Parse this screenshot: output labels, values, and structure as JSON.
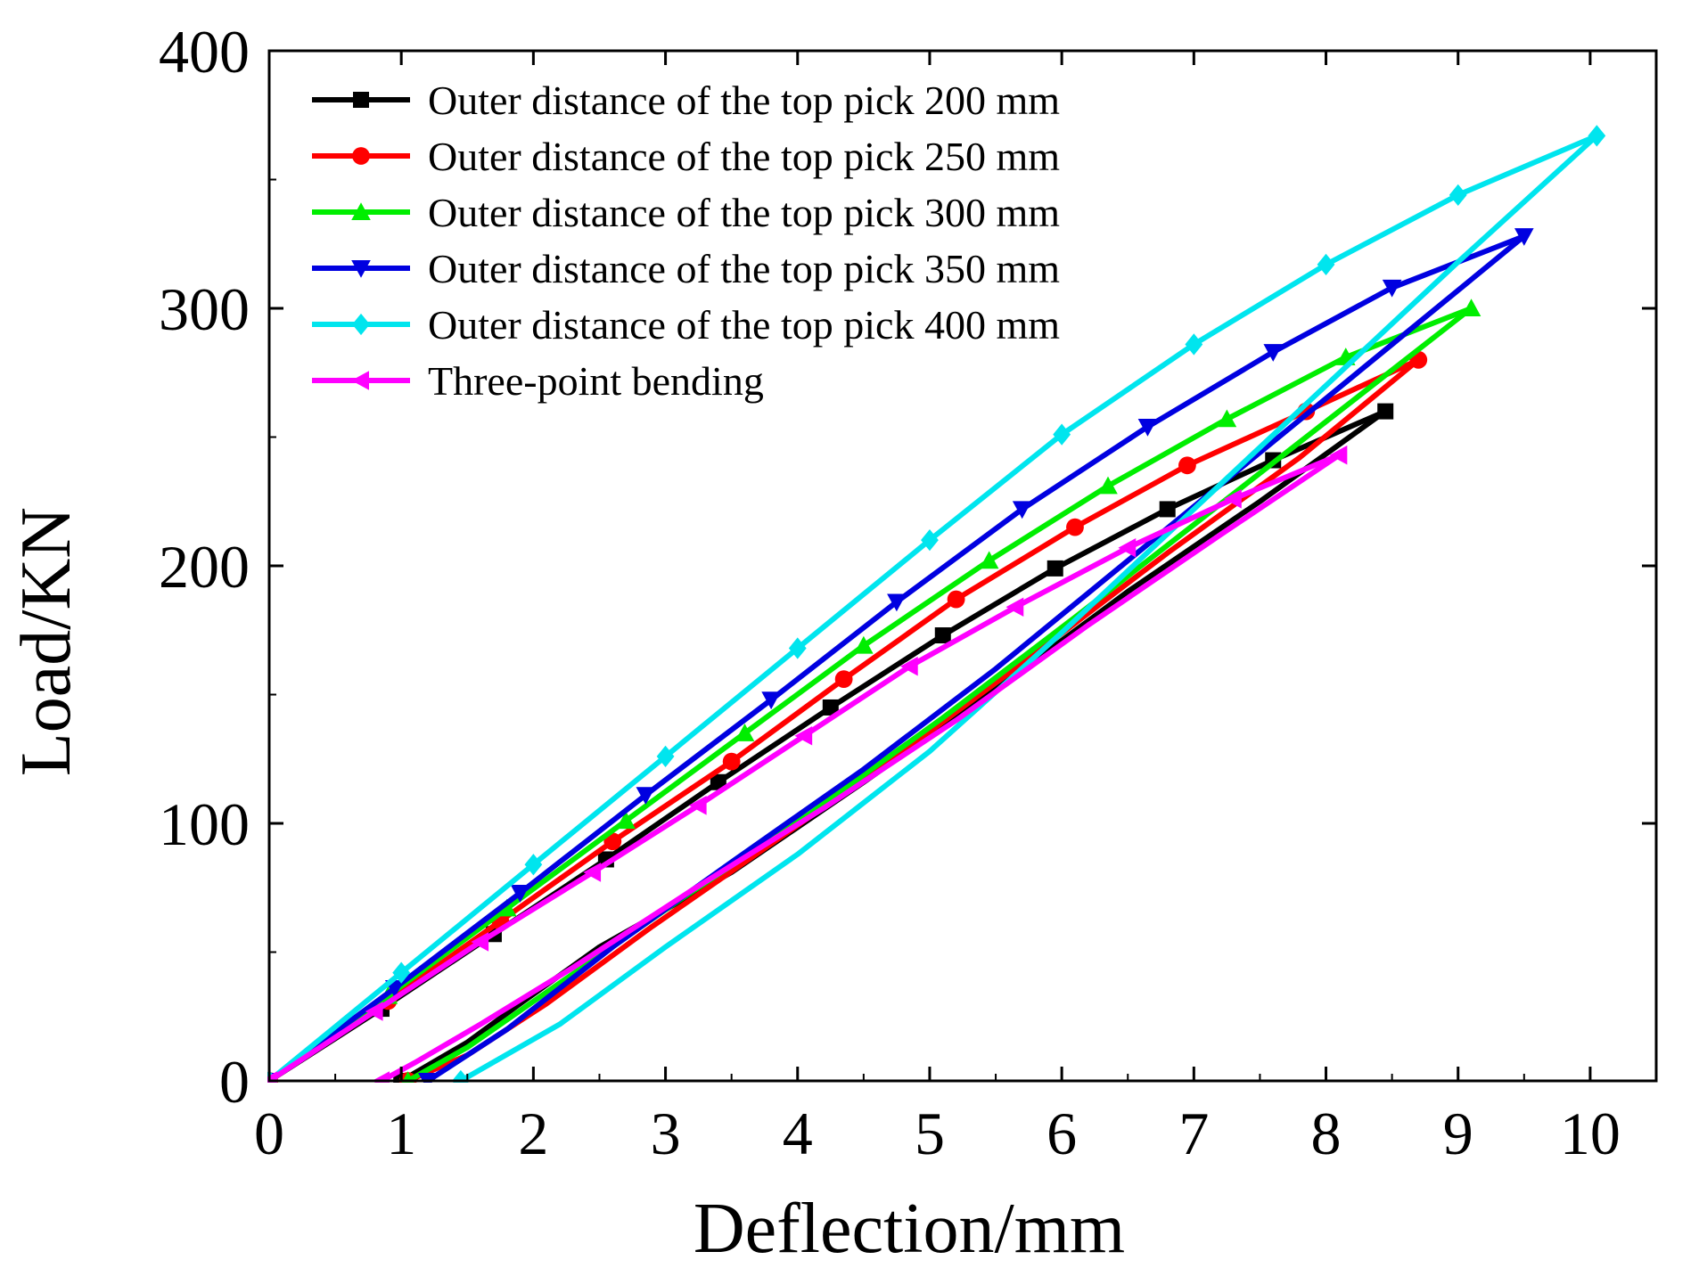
{
  "chart_data": {
    "type": "line",
    "title": "",
    "xlabel": "Deflection/mm",
    "ylabel": "Load/KN",
    "xlim": [
      0,
      10.5
    ],
    "ylim": [
      0,
      400
    ],
    "xticks": [
      0,
      1,
      2,
      3,
      4,
      5,
      6,
      7,
      8,
      9,
      10
    ],
    "yticks": [
      0,
      100,
      200,
      300,
      400
    ],
    "grid": false,
    "legend_position": "top-left",
    "series": [
      {
        "name": "Outer distance of the top pick 200 mm",
        "color": "#000000",
        "marker": "square",
        "loading": [
          [
            0,
            0
          ],
          [
            0.85,
            28
          ],
          [
            1.7,
            57
          ],
          [
            2.55,
            86
          ],
          [
            3.4,
            116
          ],
          [
            4.25,
            145
          ],
          [
            5.1,
            173
          ],
          [
            5.95,
            199
          ],
          [
            6.8,
            222
          ],
          [
            7.6,
            241
          ],
          [
            8.45,
            260
          ]
        ],
        "unloading": [
          [
            8.45,
            260
          ],
          [
            7.5,
            225
          ],
          [
            6.5,
            190
          ],
          [
            5.5,
            152
          ],
          [
            4.5,
            116
          ],
          [
            3.5,
            81
          ],
          [
            2.5,
            52
          ],
          [
            1.9,
            30
          ],
          [
            1.5,
            15
          ],
          [
            1.0,
            0
          ]
        ]
      },
      {
        "name": "Outer distance of the top pick 250 mm",
        "color": "#ff0000",
        "marker": "circle",
        "loading": [
          [
            0,
            0
          ],
          [
            0.9,
            31
          ],
          [
            1.75,
            62
          ],
          [
            2.6,
            93
          ],
          [
            3.5,
            124
          ],
          [
            4.35,
            156
          ],
          [
            5.2,
            187
          ],
          [
            6.1,
            215
          ],
          [
            6.95,
            239
          ],
          [
            7.85,
            260
          ],
          [
            8.7,
            280
          ]
        ],
        "unloading": [
          [
            8.7,
            280
          ],
          [
            7.8,
            242
          ],
          [
            6.8,
            205
          ],
          [
            5.8,
            166
          ],
          [
            4.8,
            128
          ],
          [
            3.8,
            92
          ],
          [
            2.9,
            60
          ],
          [
            2.1,
            30
          ],
          [
            1.5,
            10
          ],
          [
            1.05,
            0
          ]
        ]
      },
      {
        "name": "Outer distance of the top pick 300 mm",
        "color": "#00ee00",
        "marker": "triangle-up",
        "loading": [
          [
            0,
            0
          ],
          [
            0.9,
            33
          ],
          [
            1.8,
            67
          ],
          [
            2.7,
            101
          ],
          [
            3.6,
            135
          ],
          [
            4.5,
            169
          ],
          [
            5.45,
            202
          ],
          [
            6.35,
            231
          ],
          [
            7.25,
            257
          ],
          [
            8.15,
            281
          ],
          [
            9.1,
            300
          ]
        ],
        "unloading": [
          [
            9.1,
            300
          ],
          [
            8.1,
            260
          ],
          [
            7.1,
            220
          ],
          [
            6.1,
            180
          ],
          [
            5.1,
            141
          ],
          [
            4.1,
            104
          ],
          [
            3.1,
            70
          ],
          [
            2.2,
            38
          ],
          [
            1.5,
            13
          ],
          [
            1.05,
            0
          ]
        ]
      },
      {
        "name": "Outer distance of the top pick 350 mm",
        "color": "#0000e0",
        "marker": "triangle-down",
        "loading": [
          [
            0,
            0
          ],
          [
            0.95,
            36
          ],
          [
            1.9,
            73
          ],
          [
            2.85,
            111
          ],
          [
            3.8,
            148
          ],
          [
            4.75,
            186
          ],
          [
            5.7,
            222
          ],
          [
            6.65,
            254
          ],
          [
            7.6,
            283
          ],
          [
            8.5,
            308
          ],
          [
            9.5,
            328
          ]
        ],
        "unloading": [
          [
            9.5,
            328
          ],
          [
            8.5,
            286
          ],
          [
            7.5,
            244
          ],
          [
            6.5,
            202
          ],
          [
            5.5,
            160
          ],
          [
            4.5,
            121
          ],
          [
            3.5,
            85
          ],
          [
            2.6,
            52
          ],
          [
            1.8,
            20
          ],
          [
            1.2,
            0
          ]
        ]
      },
      {
        "name": "Outer distance of the top pick 400 mm",
        "color": "#00e5ee",
        "marker": "diamond",
        "loading": [
          [
            0,
            0
          ],
          [
            1.0,
            42
          ],
          [
            2.0,
            84
          ],
          [
            3.0,
            126
          ],
          [
            4.0,
            168
          ],
          [
            5.0,
            210
          ],
          [
            6.0,
            251
          ],
          [
            7.0,
            286
          ],
          [
            8.0,
            317
          ],
          [
            9.0,
            344
          ],
          [
            10.05,
            367
          ]
        ],
        "unloading": [
          [
            10.05,
            367
          ],
          [
            9.0,
            318
          ],
          [
            8.0,
            270
          ],
          [
            7.0,
            222
          ],
          [
            6.0,
            174
          ],
          [
            5.0,
            128
          ],
          [
            4.0,
            88
          ],
          [
            3.0,
            52
          ],
          [
            2.2,
            22
          ],
          [
            1.45,
            0
          ]
        ]
      },
      {
        "name": "Three-point bending",
        "color": "#ff00ff",
        "marker": "triangle-left",
        "loading": [
          [
            0,
            0
          ],
          [
            0.8,
            27
          ],
          [
            1.6,
            54
          ],
          [
            2.45,
            81
          ],
          [
            3.25,
            107
          ],
          [
            4.05,
            134
          ],
          [
            4.85,
            161
          ],
          [
            5.65,
            184
          ],
          [
            6.5,
            207
          ],
          [
            7.3,
            226
          ],
          [
            8.1,
            243
          ]
        ],
        "unloading": [
          [
            8.1,
            243
          ],
          [
            7.2,
            212
          ],
          [
            6.2,
            177
          ],
          [
            5.2,
            140
          ],
          [
            4.2,
            106
          ],
          [
            3.2,
            74
          ],
          [
            2.3,
            44
          ],
          [
            1.6,
            22
          ],
          [
            1.1,
            7
          ],
          [
            0.85,
            0
          ]
        ]
      }
    ]
  }
}
